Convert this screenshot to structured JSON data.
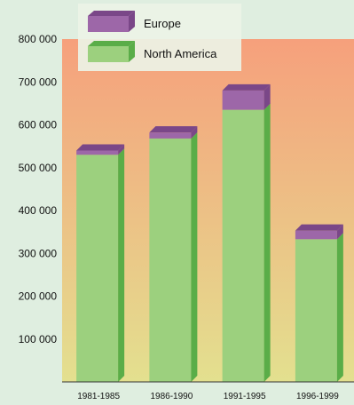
{
  "chart_data": {
    "type": "bar",
    "stacked": true,
    "categories": [
      "1981-1985",
      "1986-1990",
      "1991-1995",
      "1996-1999"
    ],
    "series": [
      {
        "name": "North America",
        "values": [
          530000,
          568000,
          635000,
          333000
        ]
      },
      {
        "name": "Europe",
        "values": [
          10000,
          14000,
          45000,
          20000
        ]
      }
    ],
    "ylim": [
      0,
      800000
    ],
    "yticks": [
      100000,
      200000,
      300000,
      400000,
      500000,
      600000,
      700000,
      800000
    ],
    "ytick_labels": [
      "100 000",
      "200 000",
      "300 000",
      "400 000",
      "500 000",
      "600 000",
      "700 000",
      "800 000"
    ],
    "legend": {
      "placement": "top-left"
    },
    "grid": false,
    "colors": {
      "north_america_front": "#9cd07e",
      "north_america_side": "#5aad48",
      "europe_front": "#9d67a8",
      "europe_side": "#7a4788",
      "background_top": "#f6a07c",
      "background_bottom": "#e3e08f",
      "margin_bg": "#dfeee0"
    }
  }
}
